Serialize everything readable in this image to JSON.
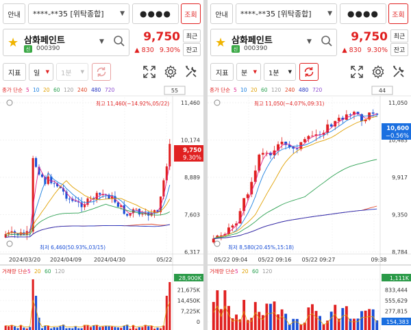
{
  "screens": [
    {
      "guide_label": "안내",
      "account": "****-**35 [위탁종합]",
      "password": "●●●●",
      "query_label": "조회",
      "stock_name": "삼화페인트",
      "stock_code": "000390",
      "market_badge": "신",
      "price": "9,750",
      "change_arrow": "▲",
      "change_amount": "830",
      "change_pct": "9.30%",
      "recent_label": "최근",
      "holdings_label": "잔고",
      "indicator_label": "지표",
      "period_label": "일",
      "interval_label": "1분",
      "ma_title": "종가 단순",
      "ma_periods": [
        "5",
        "10",
        "20",
        "60",
        "120",
        "240",
        "480",
        "720"
      ],
      "ma_colors": [
        "#e0208a",
        "#1a7fe0",
        "#e0a000",
        "#2aa050",
        "#999999",
        "#e04020",
        "#2030c0",
        "#8a4ad0"
      ],
      "count_box": "55",
      "price_axis": [
        "11,460",
        "10,174",
        "8,889",
        "7,603",
        "6,317"
      ],
      "high_label": "최고 11,460(−14.92%,05/22)",
      "low_label": "최저 6,460(50.93%,03/15)",
      "cur_tag_price": "9,750",
      "cur_tag_pct": "9.30%",
      "time_axis": [
        "2024/03/20",
        "2024/04/09",
        "2024/04/30",
        "05/22"
      ],
      "vol_title": "거래량 단순",
      "vol_periods": [
        "5",
        "20",
        "60",
        "120"
      ],
      "vol_colors": [
        "#e0208a",
        "#e0a000",
        "#2aa050",
        "#999999"
      ],
      "vol_axis": [
        "28,900K",
        "21,675K",
        "14,450K",
        "7,225K",
        "0"
      ]
    },
    {
      "guide_label": "안내",
      "account": "****-**35 [위탁종합]",
      "password": "●●●●",
      "query_label": "조회",
      "stock_name": "삼화페인트",
      "stock_code": "000390",
      "market_badge": "신",
      "price": "9,750",
      "change_arrow": "▲",
      "change_amount": "830",
      "change_pct": "9.30%",
      "recent_label": "최근",
      "holdings_label": "잔고",
      "indicator_label": "지표",
      "period_label": "분",
      "interval_label": "1분",
      "ma_title": "종가 단순",
      "ma_periods": [
        "5",
        "10",
        "20",
        "60",
        "120",
        "240",
        "480",
        "720"
      ],
      "ma_colors": [
        "#e0208a",
        "#1a7fe0",
        "#e0a000",
        "#2aa050",
        "#999999",
        "#e04020",
        "#2030c0",
        "#8a4ad0"
      ],
      "count_box": "44",
      "price_axis": [
        "11,050",
        "10,483",
        "9,917",
        "9,350",
        "8,784"
      ],
      "high_label": "최고 11,050(−4.07%,09:31)",
      "low_label": "최저 8,580(20.45%,15:18)",
      "cur_tag_price": "10,600",
      "cur_tag_pct": "−0.56%",
      "time_axis": [
        "05/22 09:04",
        "05/22 09:16",
        "05/22 09:27",
        "09:38"
      ],
      "vol_title": "거래량 단순",
      "vol_periods": [
        "5",
        "20",
        "60",
        "120"
      ],
      "vol_colors": [
        "#e0208a",
        "#e0a000",
        "#2aa050",
        "#999999"
      ],
      "vol_axis": [
        "1,111K",
        "833,444",
        "555,629",
        "277,815",
        "154,383"
      ]
    }
  ]
}
